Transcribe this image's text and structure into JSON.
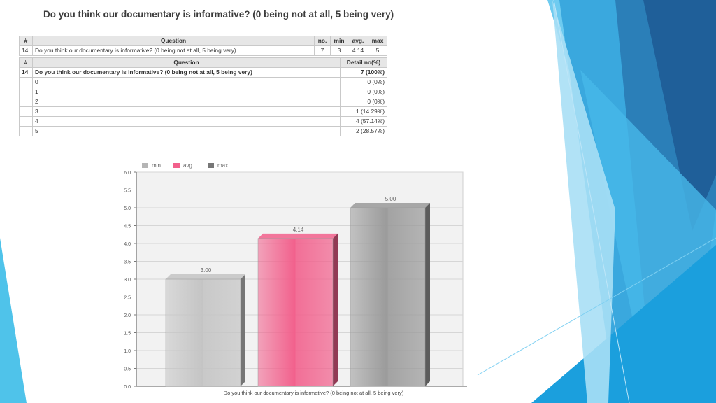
{
  "title": "Do you think our documentary is informative? (0 being not at all, 5 being very)",
  "summary_table": {
    "headers": [
      "#",
      "Question",
      "no.",
      "min",
      "avg.",
      "max"
    ],
    "row": [
      "14",
      "Do you think our documentary is informative? (0 being not at all, 5 being very)",
      "7",
      "3",
      "4.14",
      "5"
    ]
  },
  "detail_table": {
    "headers": [
      "#",
      "Question",
      "Detail no(%)"
    ],
    "main_row": [
      "14",
      "Do you think our documentary is informative? (0 being not at all, 5 being very)",
      "7 (100%)"
    ],
    "rows": [
      [
        "0",
        "0 (0%)"
      ],
      [
        "1",
        "0 (0%)"
      ],
      [
        "2",
        "0 (0%)"
      ],
      [
        "3",
        "1 (14.29%)"
      ],
      [
        "4",
        "4 (57.14%)"
      ],
      [
        "5",
        "2 (28.57%)"
      ]
    ]
  },
  "chart_data": {
    "type": "bar",
    "categories": [
      "Do you think our documentary is informative? (0 being not at all, 5 being very)"
    ],
    "series": [
      {
        "name": "min",
        "values": [
          3.0
        ],
        "label": "3.00",
        "color": "#c4c4c4"
      },
      {
        "name": "avg.",
        "values": [
          4.14
        ],
        "label": "4.14",
        "color": "#f2608c"
      },
      {
        "name": "max",
        "values": [
          5.0
        ],
        "label": "5.00",
        "color": "#9a9a9a"
      }
    ],
    "ylim": [
      0,
      6
    ],
    "yticks": [
      "0.0",
      "0.5",
      "1.0",
      "1.5",
      "2.0",
      "2.5",
      "3.0",
      "3.5",
      "4.0",
      "4.5",
      "5.0",
      "5.5",
      "6.0"
    ],
    "grid": true,
    "legend": "top-left"
  }
}
